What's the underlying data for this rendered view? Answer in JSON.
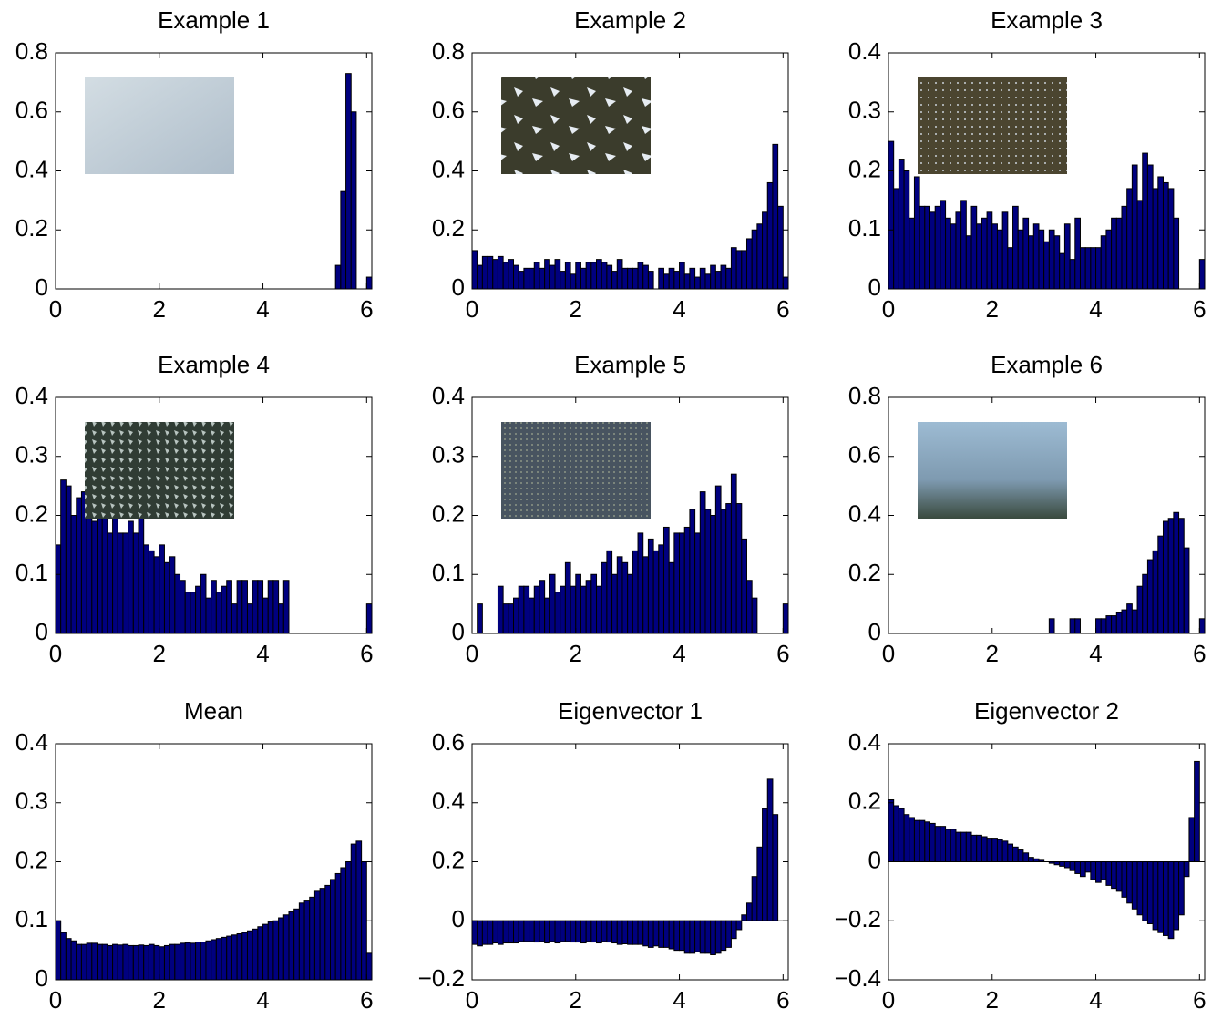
{
  "chart_data": [
    {
      "type": "histogram",
      "title": "Example 1",
      "color": "#00007f",
      "bins": [
        0,
        0.1,
        0.2,
        0.3,
        0.4,
        0.5,
        0.6,
        0.7,
        0.8,
        0.9,
        1,
        1.1,
        1.2,
        1.3,
        1.4,
        1.5,
        1.6,
        1.7,
        1.8,
        1.9,
        2,
        2.1,
        2.2,
        2.3,
        2.4,
        2.5,
        2.6,
        2.7,
        2.8,
        2.9,
        3,
        3.1,
        3.2,
        3.3,
        3.4,
        3.5,
        3.6,
        3.7,
        3.8,
        3.9,
        4,
        4.1,
        4.2,
        4.3,
        4.4,
        4.5,
        4.6,
        4.7,
        4.8,
        4.9,
        5,
        5.1,
        5.2,
        5.3,
        5.4,
        5.5,
        5.6,
        5.7,
        5.8,
        5.9,
        6,
        6.1
      ],
      "values": [
        0,
        0,
        0,
        0,
        0,
        0,
        0,
        0,
        0,
        0,
        0,
        0,
        0,
        0,
        0,
        0,
        0,
        0,
        0,
        0,
        0,
        0,
        0,
        0,
        0,
        0,
        0,
        0,
        0,
        0,
        0,
        0,
        0,
        0,
        0,
        0,
        0,
        0,
        0,
        0,
        0,
        0,
        0,
        0,
        0,
        0,
        0,
        0,
        0,
        0,
        0,
        0,
        0,
        0,
        0.08,
        0.33,
        0.73,
        0.6,
        0,
        0,
        0.04
      ],
      "xlim": [
        0,
        6.1
      ],
      "xticks": [
        0,
        2,
        4,
        6
      ],
      "ylim": [
        0,
        0.8
      ],
      "yticks": [
        0,
        0.2,
        0.4,
        0.6,
        0.8
      ]
    },
    {
      "type": "histogram",
      "title": "Example 2",
      "color": "#00007f",
      "bins": [
        0,
        0.1,
        0.2,
        0.3,
        0.4,
        0.5,
        0.6,
        0.7,
        0.8,
        0.9,
        1,
        1.1,
        1.2,
        1.3,
        1.4,
        1.5,
        1.6,
        1.7,
        1.8,
        1.9,
        2,
        2.1,
        2.2,
        2.3,
        2.4,
        2.5,
        2.6,
        2.7,
        2.8,
        2.9,
        3,
        3.1,
        3.2,
        3.3,
        3.4,
        3.5,
        3.6,
        3.7,
        3.8,
        3.9,
        4,
        4.1,
        4.2,
        4.3,
        4.4,
        4.5,
        4.6,
        4.7,
        4.8,
        4.9,
        5,
        5.1,
        5.2,
        5.3,
        5.4,
        5.5,
        5.6,
        5.7,
        5.8,
        5.9,
        6,
        6.1
      ],
      "values": [
        0.13,
        0.08,
        0.11,
        0.11,
        0.1,
        0.11,
        0.09,
        0.1,
        0.08,
        0.06,
        0.07,
        0.07,
        0.09,
        0.07,
        0.1,
        0.08,
        0.1,
        0.06,
        0.09,
        0.05,
        0.09,
        0.07,
        0.09,
        0.09,
        0.1,
        0.09,
        0.08,
        0.06,
        0.1,
        0.07,
        0.07,
        0.07,
        0.09,
        0.08,
        0.06,
        0,
        0.07,
        0.05,
        0.07,
        0.06,
        0.09,
        0.05,
        0.07,
        0.04,
        0.07,
        0.05,
        0.08,
        0.06,
        0.08,
        0.07,
        0.14,
        0.13,
        0.13,
        0.17,
        0.2,
        0.22,
        0.26,
        0.36,
        0.49,
        0.28,
        0.04
      ],
      "xlim": [
        0,
        6.1
      ],
      "xticks": [
        0,
        2,
        4,
        6
      ],
      "ylim": [
        0,
        0.8
      ],
      "yticks": [
        0,
        0.2,
        0.4,
        0.6,
        0.8
      ]
    },
    {
      "type": "histogram",
      "title": "Example 3",
      "color": "#00007f",
      "bins": [
        0,
        0.1,
        0.2,
        0.3,
        0.4,
        0.5,
        0.6,
        0.7,
        0.8,
        0.9,
        1,
        1.1,
        1.2,
        1.3,
        1.4,
        1.5,
        1.6,
        1.7,
        1.8,
        1.9,
        2,
        2.1,
        2.2,
        2.3,
        2.4,
        2.5,
        2.6,
        2.7,
        2.8,
        2.9,
        3,
        3.1,
        3.2,
        3.3,
        3.4,
        3.5,
        3.6,
        3.7,
        3.8,
        3.9,
        4,
        4.1,
        4.2,
        4.3,
        4.4,
        4.5,
        4.6,
        4.7,
        4.8,
        4.9,
        5,
        5.1,
        5.2,
        5.3,
        5.4,
        5.5,
        5.6,
        5.7,
        5.8,
        5.9,
        6,
        6.1
      ],
      "values": [
        0.25,
        0.17,
        0.22,
        0.2,
        0.12,
        0.19,
        0.14,
        0.14,
        0.13,
        0.14,
        0.15,
        0.12,
        0.11,
        0.13,
        0.15,
        0.09,
        0.14,
        0.11,
        0.12,
        0.13,
        0.11,
        0.1,
        0.13,
        0.07,
        0.14,
        0.1,
        0.12,
        0.09,
        0.11,
        0.1,
        0.08,
        0.1,
        0.09,
        0.06,
        0.11,
        0.05,
        0.12,
        0.07,
        0.07,
        0.07,
        0.07,
        0.09,
        0.1,
        0.12,
        0.12,
        0.14,
        0.17,
        0.21,
        0.15,
        0.23,
        0.21,
        0.17,
        0.19,
        0.18,
        0.17,
        0.12,
        0,
        0,
        0,
        0,
        0.05
      ],
      "xlim": [
        0,
        6.1
      ],
      "xticks": [
        0,
        2,
        4,
        6
      ],
      "ylim": [
        0,
        0.4
      ],
      "yticks": [
        0,
        0.1,
        0.2,
        0.3,
        0.4
      ]
    },
    {
      "type": "histogram",
      "title": "Example 4",
      "color": "#00007f",
      "bins": [
        0,
        0.1,
        0.2,
        0.3,
        0.4,
        0.5,
        0.6,
        0.7,
        0.8,
        0.9,
        1,
        1.1,
        1.2,
        1.3,
        1.4,
        1.5,
        1.6,
        1.7,
        1.8,
        1.9,
        2,
        2.1,
        2.2,
        2.3,
        2.4,
        2.5,
        2.6,
        2.7,
        2.8,
        2.9,
        3,
        3.1,
        3.2,
        3.3,
        3.4,
        3.5,
        3.6,
        3.7,
        3.8,
        3.9,
        4,
        4.1,
        4.2,
        4.3,
        4.4,
        4.5,
        4.6,
        4.7,
        4.8,
        4.9,
        5,
        5.1,
        5.2,
        5.3,
        5.4,
        5.5,
        5.6,
        5.7,
        5.8,
        5.9,
        6,
        6.1
      ],
      "values": [
        0.15,
        0.26,
        0.25,
        0.2,
        0.23,
        0.24,
        0.25,
        0.19,
        0.23,
        0.2,
        0.17,
        0.21,
        0.17,
        0.17,
        0.19,
        0.17,
        0.2,
        0.15,
        0.14,
        0.13,
        0.15,
        0.12,
        0.13,
        0.1,
        0.09,
        0.07,
        0.07,
        0.08,
        0.1,
        0.06,
        0.09,
        0.07,
        0.08,
        0.09,
        0.05,
        0.09,
        0.09,
        0.05,
        0.09,
        0.09,
        0.06,
        0.09,
        0.09,
        0.05,
        0.09,
        0,
        0,
        0,
        0,
        0,
        0,
        0,
        0,
        0,
        0,
        0,
        0,
        0,
        0,
        0,
        0.05
      ],
      "xlim": [
        0,
        6.1
      ],
      "xticks": [
        0,
        2,
        4,
        6
      ],
      "ylim": [
        0,
        0.4
      ],
      "yticks": [
        0,
        0.1,
        0.2,
        0.3,
        0.4
      ]
    },
    {
      "type": "histogram",
      "title": "Example 5",
      "color": "#00007f",
      "bins": [
        0,
        0.1,
        0.2,
        0.3,
        0.4,
        0.5,
        0.6,
        0.7,
        0.8,
        0.9,
        1,
        1.1,
        1.2,
        1.3,
        1.4,
        1.5,
        1.6,
        1.7,
        1.8,
        1.9,
        2,
        2.1,
        2.2,
        2.3,
        2.4,
        2.5,
        2.6,
        2.7,
        2.8,
        2.9,
        3,
        3.1,
        3.2,
        3.3,
        3.4,
        3.5,
        3.6,
        3.7,
        3.8,
        3.9,
        4,
        4.1,
        4.2,
        4.3,
        4.4,
        4.5,
        4.6,
        4.7,
        4.8,
        4.9,
        5,
        5.1,
        5.2,
        5.3,
        5.4,
        5.5,
        5.6,
        5.7,
        5.8,
        5.9,
        6,
        6.1
      ],
      "values": [
        0,
        0.05,
        0,
        0,
        0,
        0.08,
        0.05,
        0.05,
        0.06,
        0.08,
        0.08,
        0.06,
        0.08,
        0.09,
        0.06,
        0.1,
        0.07,
        0.08,
        0.12,
        0.08,
        0.1,
        0.08,
        0.09,
        0.1,
        0.08,
        0.12,
        0.14,
        0.1,
        0.13,
        0.12,
        0.1,
        0.14,
        0.17,
        0.13,
        0.16,
        0.14,
        0.15,
        0.18,
        0.12,
        0.17,
        0.17,
        0.18,
        0.21,
        0.17,
        0.24,
        0.21,
        0.2,
        0.25,
        0.21,
        0.22,
        0.27,
        0.22,
        0.16,
        0.09,
        0.06,
        0,
        0,
        0,
        0,
        0,
        0.05
      ],
      "xlim": [
        0,
        6.1
      ],
      "xticks": [
        0,
        2,
        4,
        6
      ],
      "ylim": [
        0,
        0.4
      ],
      "yticks": [
        0,
        0.1,
        0.2,
        0.3,
        0.4
      ]
    },
    {
      "type": "histogram",
      "title": "Example 6",
      "color": "#00007f",
      "bins": [
        0,
        0.1,
        0.2,
        0.3,
        0.4,
        0.5,
        0.6,
        0.7,
        0.8,
        0.9,
        1,
        1.1,
        1.2,
        1.3,
        1.4,
        1.5,
        1.6,
        1.7,
        1.8,
        1.9,
        2,
        2.1,
        2.2,
        2.3,
        2.4,
        2.5,
        2.6,
        2.7,
        2.8,
        2.9,
        3,
        3.1,
        3.2,
        3.3,
        3.4,
        3.5,
        3.6,
        3.7,
        3.8,
        3.9,
        4,
        4.1,
        4.2,
        4.3,
        4.4,
        4.5,
        4.6,
        4.7,
        4.8,
        4.9,
        5,
        5.1,
        5.2,
        5.3,
        5.4,
        5.5,
        5.6,
        5.7,
        5.8,
        5.9,
        6,
        6.1
      ],
      "values": [
        0,
        0,
        0,
        0,
        0,
        0,
        0,
        0,
        0,
        0,
        0,
        0,
        0,
        0,
        0,
        0,
        0,
        0,
        0,
        0,
        0,
        0,
        0,
        0,
        0,
        0,
        0,
        0,
        0,
        0,
        0,
        0.05,
        0,
        0,
        0,
        0.05,
        0.05,
        0,
        0,
        0,
        0.05,
        0.05,
        0.06,
        0.06,
        0.07,
        0.08,
        0.1,
        0.08,
        0.16,
        0.2,
        0.25,
        0.28,
        0.33,
        0.38,
        0.39,
        0.41,
        0.39,
        0.29,
        0,
        0,
        0.05
      ],
      "xlim": [
        0,
        6.1
      ],
      "xticks": [
        0,
        2,
        4,
        6
      ],
      "ylim": [
        0,
        0.8
      ],
      "yticks": [
        0,
        0.2,
        0.4,
        0.6,
        0.8
      ]
    },
    {
      "type": "histogram",
      "title": "Mean",
      "color": "#00007f",
      "bins": [
        0,
        0.1,
        0.2,
        0.3,
        0.4,
        0.5,
        0.6,
        0.7,
        0.8,
        0.9,
        1,
        1.1,
        1.2,
        1.3,
        1.4,
        1.5,
        1.6,
        1.7,
        1.8,
        1.9,
        2,
        2.1,
        2.2,
        2.3,
        2.4,
        2.5,
        2.6,
        2.7,
        2.8,
        2.9,
        3,
        3.1,
        3.2,
        3.3,
        3.4,
        3.5,
        3.6,
        3.7,
        3.8,
        3.9,
        4,
        4.1,
        4.2,
        4.3,
        4.4,
        4.5,
        4.6,
        4.7,
        4.8,
        4.9,
        5,
        5.1,
        5.2,
        5.3,
        5.4,
        5.5,
        5.6,
        5.7,
        5.8,
        5.9,
        6,
        6.1
      ],
      "values": [
        0.1,
        0.08,
        0.07,
        0.066,
        0.06,
        0.06,
        0.062,
        0.062,
        0.06,
        0.06,
        0.058,
        0.06,
        0.059,
        0.06,
        0.058,
        0.058,
        0.059,
        0.058,
        0.06,
        0.058,
        0.056,
        0.058,
        0.06,
        0.06,
        0.062,
        0.063,
        0.062,
        0.064,
        0.064,
        0.066,
        0.068,
        0.07,
        0.072,
        0.074,
        0.076,
        0.078,
        0.08,
        0.083,
        0.086,
        0.09,
        0.094,
        0.098,
        0.1,
        0.105,
        0.11,
        0.115,
        0.12,
        0.13,
        0.135,
        0.14,
        0.15,
        0.155,
        0.16,
        0.17,
        0.18,
        0.19,
        0.2,
        0.23,
        0.235,
        0.2,
        0.045
      ],
      "xlim": [
        0,
        6.1
      ],
      "xticks": [
        0,
        2,
        4,
        6
      ],
      "ylim": [
        0,
        0.4
      ],
      "yticks": [
        0,
        0.1,
        0.2,
        0.3,
        0.4
      ]
    },
    {
      "type": "histogram",
      "title": "Eigenvector 1",
      "color": "#00007f",
      "bins": [
        0,
        0.1,
        0.2,
        0.3,
        0.4,
        0.5,
        0.6,
        0.7,
        0.8,
        0.9,
        1,
        1.1,
        1.2,
        1.3,
        1.4,
        1.5,
        1.6,
        1.7,
        1.8,
        1.9,
        2,
        2.1,
        2.2,
        2.3,
        2.4,
        2.5,
        2.6,
        2.7,
        2.8,
        2.9,
        3,
        3.1,
        3.2,
        3.3,
        3.4,
        3.5,
        3.6,
        3.7,
        3.8,
        3.9,
        4,
        4.1,
        4.2,
        4.3,
        4.4,
        4.5,
        4.6,
        4.7,
        4.8,
        4.9,
        5,
        5.1,
        5.2,
        5.3,
        5.4,
        5.5,
        5.6,
        5.7,
        5.8,
        5.9,
        6,
        6.1
      ],
      "values": [
        -0.08,
        -0.085,
        -0.08,
        -0.08,
        -0.075,
        -0.08,
        -0.075,
        -0.075,
        -0.075,
        -0.07,
        -0.07,
        -0.07,
        -0.072,
        -0.07,
        -0.075,
        -0.07,
        -0.075,
        -0.07,
        -0.07,
        -0.072,
        -0.072,
        -0.075,
        -0.07,
        -0.072,
        -0.075,
        -0.07,
        -0.072,
        -0.075,
        -0.08,
        -0.078,
        -0.08,
        -0.08,
        -0.08,
        -0.085,
        -0.09,
        -0.085,
        -0.09,
        -0.09,
        -0.095,
        -0.1,
        -0.1,
        -0.11,
        -0.11,
        -0.105,
        -0.11,
        -0.11,
        -0.115,
        -0.11,
        -0.1,
        -0.09,
        -0.06,
        -0.03,
        0.02,
        0.06,
        0.15,
        0.25,
        0.38,
        0.48,
        0.36,
        0,
        0
      ],
      "xlim": [
        0,
        6.1
      ],
      "xticks": [
        0,
        2,
        4,
        6
      ],
      "ylim": [
        -0.2,
        0.6
      ],
      "yticks": [
        {
          "value": -0.2,
          "label": "−0.2"
        },
        0,
        0.2,
        0.4,
        0.6
      ]
    },
    {
      "type": "histogram",
      "title": "Eigenvector 2",
      "color": "#00007f",
      "bins": [
        0,
        0.1,
        0.2,
        0.3,
        0.4,
        0.5,
        0.6,
        0.7,
        0.8,
        0.9,
        1,
        1.1,
        1.2,
        1.3,
        1.4,
        1.5,
        1.6,
        1.7,
        1.8,
        1.9,
        2,
        2.1,
        2.2,
        2.3,
        2.4,
        2.5,
        2.6,
        2.7,
        2.8,
        2.9,
        3,
        3.1,
        3.2,
        3.3,
        3.4,
        3.5,
        3.6,
        3.7,
        3.8,
        3.9,
        4,
        4.1,
        4.2,
        4.3,
        4.4,
        4.5,
        4.6,
        4.7,
        4.8,
        4.9,
        5,
        5.1,
        5.2,
        5.3,
        5.4,
        5.5,
        5.6,
        5.7,
        5.8,
        5.9,
        6,
        6.1
      ],
      "values": [
        0.21,
        0.19,
        0.18,
        0.16,
        0.15,
        0.14,
        0.14,
        0.135,
        0.13,
        0.12,
        0.12,
        0.11,
        0.11,
        0.1,
        0.1,
        0.1,
        0.09,
        0.09,
        0.085,
        0.08,
        0.08,
        0.075,
        0.07,
        0.06,
        0.05,
        0.04,
        0.03,
        0.015,
        0.01,
        0.005,
        0,
        -0.005,
        -0.01,
        -0.015,
        -0.02,
        -0.03,
        -0.04,
        -0.05,
        -0.035,
        -0.06,
        -0.07,
        -0.06,
        -0.08,
        -0.09,
        -0.1,
        -0.12,
        -0.14,
        -0.16,
        -0.18,
        -0.2,
        -0.21,
        -0.23,
        -0.24,
        -0.25,
        -0.26,
        -0.23,
        -0.18,
        -0.05,
        0.15,
        0.34,
        0
      ],
      "xlim": [
        0,
        6.1
      ],
      "xticks": [
        0,
        2,
        4,
        6
      ],
      "ylim": [
        -0.4,
        0.4
      ],
      "yticks": [
        {
          "value": -0.4,
          "label": "−0.4"
        },
        {
          "value": -0.2,
          "label": "−0.2"
        },
        0,
        0.2,
        0.4
      ]
    }
  ]
}
